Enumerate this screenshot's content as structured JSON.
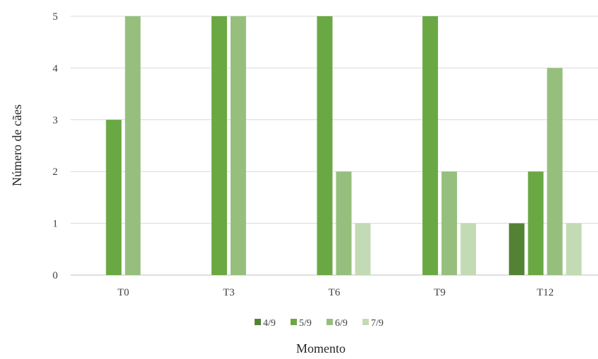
{
  "chart_data": {
    "type": "bar",
    "categories": [
      "T0",
      "T3",
      "T6",
      "T9",
      "T12"
    ],
    "series": [
      {
        "name": "4/9",
        "color": "#548235",
        "values": [
          0,
          0,
          0,
          0,
          1
        ]
      },
      {
        "name": "5/9",
        "color": "#6aa844",
        "values": [
          3,
          5,
          5,
          5,
          2
        ]
      },
      {
        "name": "6/9",
        "color": "#96bf7d",
        "values": [
          5,
          5,
          2,
          2,
          4
        ]
      },
      {
        "name": "7/9",
        "color": "#c3dbb4",
        "values": [
          0,
          0,
          1,
          1,
          1
        ]
      }
    ],
    "xlabel": "Momento",
    "ylabel": "Número de cães",
    "ylim": [
      0,
      5
    ],
    "yticks": [
      0,
      1,
      2,
      3,
      4,
      5
    ],
    "grid": true,
    "legend_position": "bottom"
  }
}
